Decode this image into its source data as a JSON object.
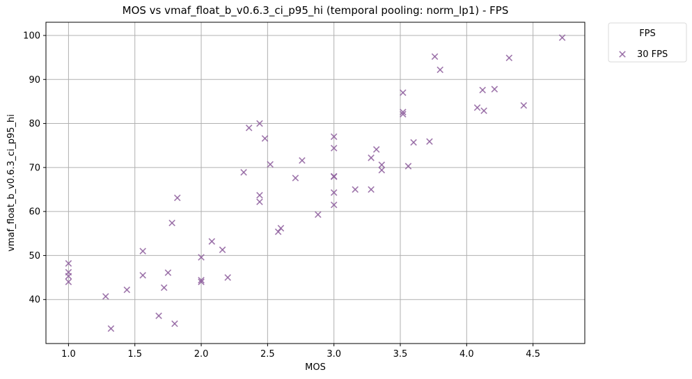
{
  "chart_data": {
    "type": "scatter",
    "title": "MOS vs vmaf_float_b_v0.6.3_ci_p95_hi (temporal pooling: norm_lp1) - FPS",
    "xlabel": "MOS",
    "ylabel": "vmaf_float_b_v0.6.3_ci_p95_hi",
    "xlim": [
      0.83,
      4.89
    ],
    "ylim": [
      30.0,
      103.0
    ],
    "xticks": [
      1.0,
      1.5,
      2.0,
      2.5,
      3.0,
      3.5,
      4.0,
      4.5
    ],
    "xtick_labels": [
      "1.0",
      "1.5",
      "2.0",
      "2.5",
      "3.0",
      "3.5",
      "4.0",
      "4.5"
    ],
    "yticks": [
      40,
      50,
      60,
      70,
      80,
      90,
      100
    ],
    "ytick_labels": [
      "40",
      "50",
      "60",
      "70",
      "80",
      "90",
      "100"
    ],
    "grid": true,
    "legend": {
      "title": "FPS",
      "placement": "outside-top-right"
    },
    "series": [
      {
        "name": "30 FPS",
        "color": "#8e5f9e",
        "marker": "x",
        "points": [
          [
            1.0,
            48.2
          ],
          [
            1.0,
            46.2
          ],
          [
            1.0,
            45.3
          ],
          [
            1.0,
            44.0
          ],
          [
            1.28,
            40.7
          ],
          [
            1.32,
            33.4
          ],
          [
            1.44,
            42.2
          ],
          [
            1.56,
            51.0
          ],
          [
            1.56,
            45.5
          ],
          [
            1.68,
            36.3
          ],
          [
            1.72,
            42.7
          ],
          [
            1.75,
            46.1
          ],
          [
            1.78,
            57.4
          ],
          [
            1.8,
            34.5
          ],
          [
            1.82,
            63.1
          ],
          [
            2.0,
            49.6
          ],
          [
            2.0,
            44.4
          ],
          [
            2.0,
            44.0
          ],
          [
            2.08,
            53.2
          ],
          [
            2.16,
            51.3
          ],
          [
            2.2,
            45.0
          ],
          [
            2.32,
            68.9
          ],
          [
            2.36,
            79.0
          ],
          [
            2.44,
            80.0
          ],
          [
            2.44,
            63.7
          ],
          [
            2.44,
            62.2
          ],
          [
            2.48,
            76.6
          ],
          [
            2.52,
            70.7
          ],
          [
            2.58,
            55.4
          ],
          [
            2.6,
            56.2
          ],
          [
            2.71,
            67.6
          ],
          [
            2.76,
            71.6
          ],
          [
            2.88,
            59.3
          ],
          [
            3.0,
            77.0
          ],
          [
            3.0,
            74.4
          ],
          [
            3.0,
            68.0
          ],
          [
            3.0,
            67.9
          ],
          [
            3.0,
            64.3
          ],
          [
            3.0,
            61.5
          ],
          [
            3.16,
            65.0
          ],
          [
            3.28,
            72.2
          ],
          [
            3.28,
            65.0
          ],
          [
            3.32,
            74.1
          ],
          [
            3.36,
            70.6
          ],
          [
            3.36,
            69.4
          ],
          [
            3.52,
            87.0
          ],
          [
            3.52,
            82.6
          ],
          [
            3.52,
            82.1
          ],
          [
            3.56,
            70.3
          ],
          [
            3.6,
            75.7
          ],
          [
            3.72,
            75.9
          ],
          [
            3.76,
            95.2
          ],
          [
            3.8,
            92.2
          ],
          [
            4.08,
            83.6
          ],
          [
            4.12,
            87.6
          ],
          [
            4.13,
            82.9
          ],
          [
            4.21,
            87.8
          ],
          [
            4.32,
            94.9
          ],
          [
            4.43,
            84.1
          ],
          [
            4.72,
            99.5
          ]
        ]
      }
    ]
  }
}
